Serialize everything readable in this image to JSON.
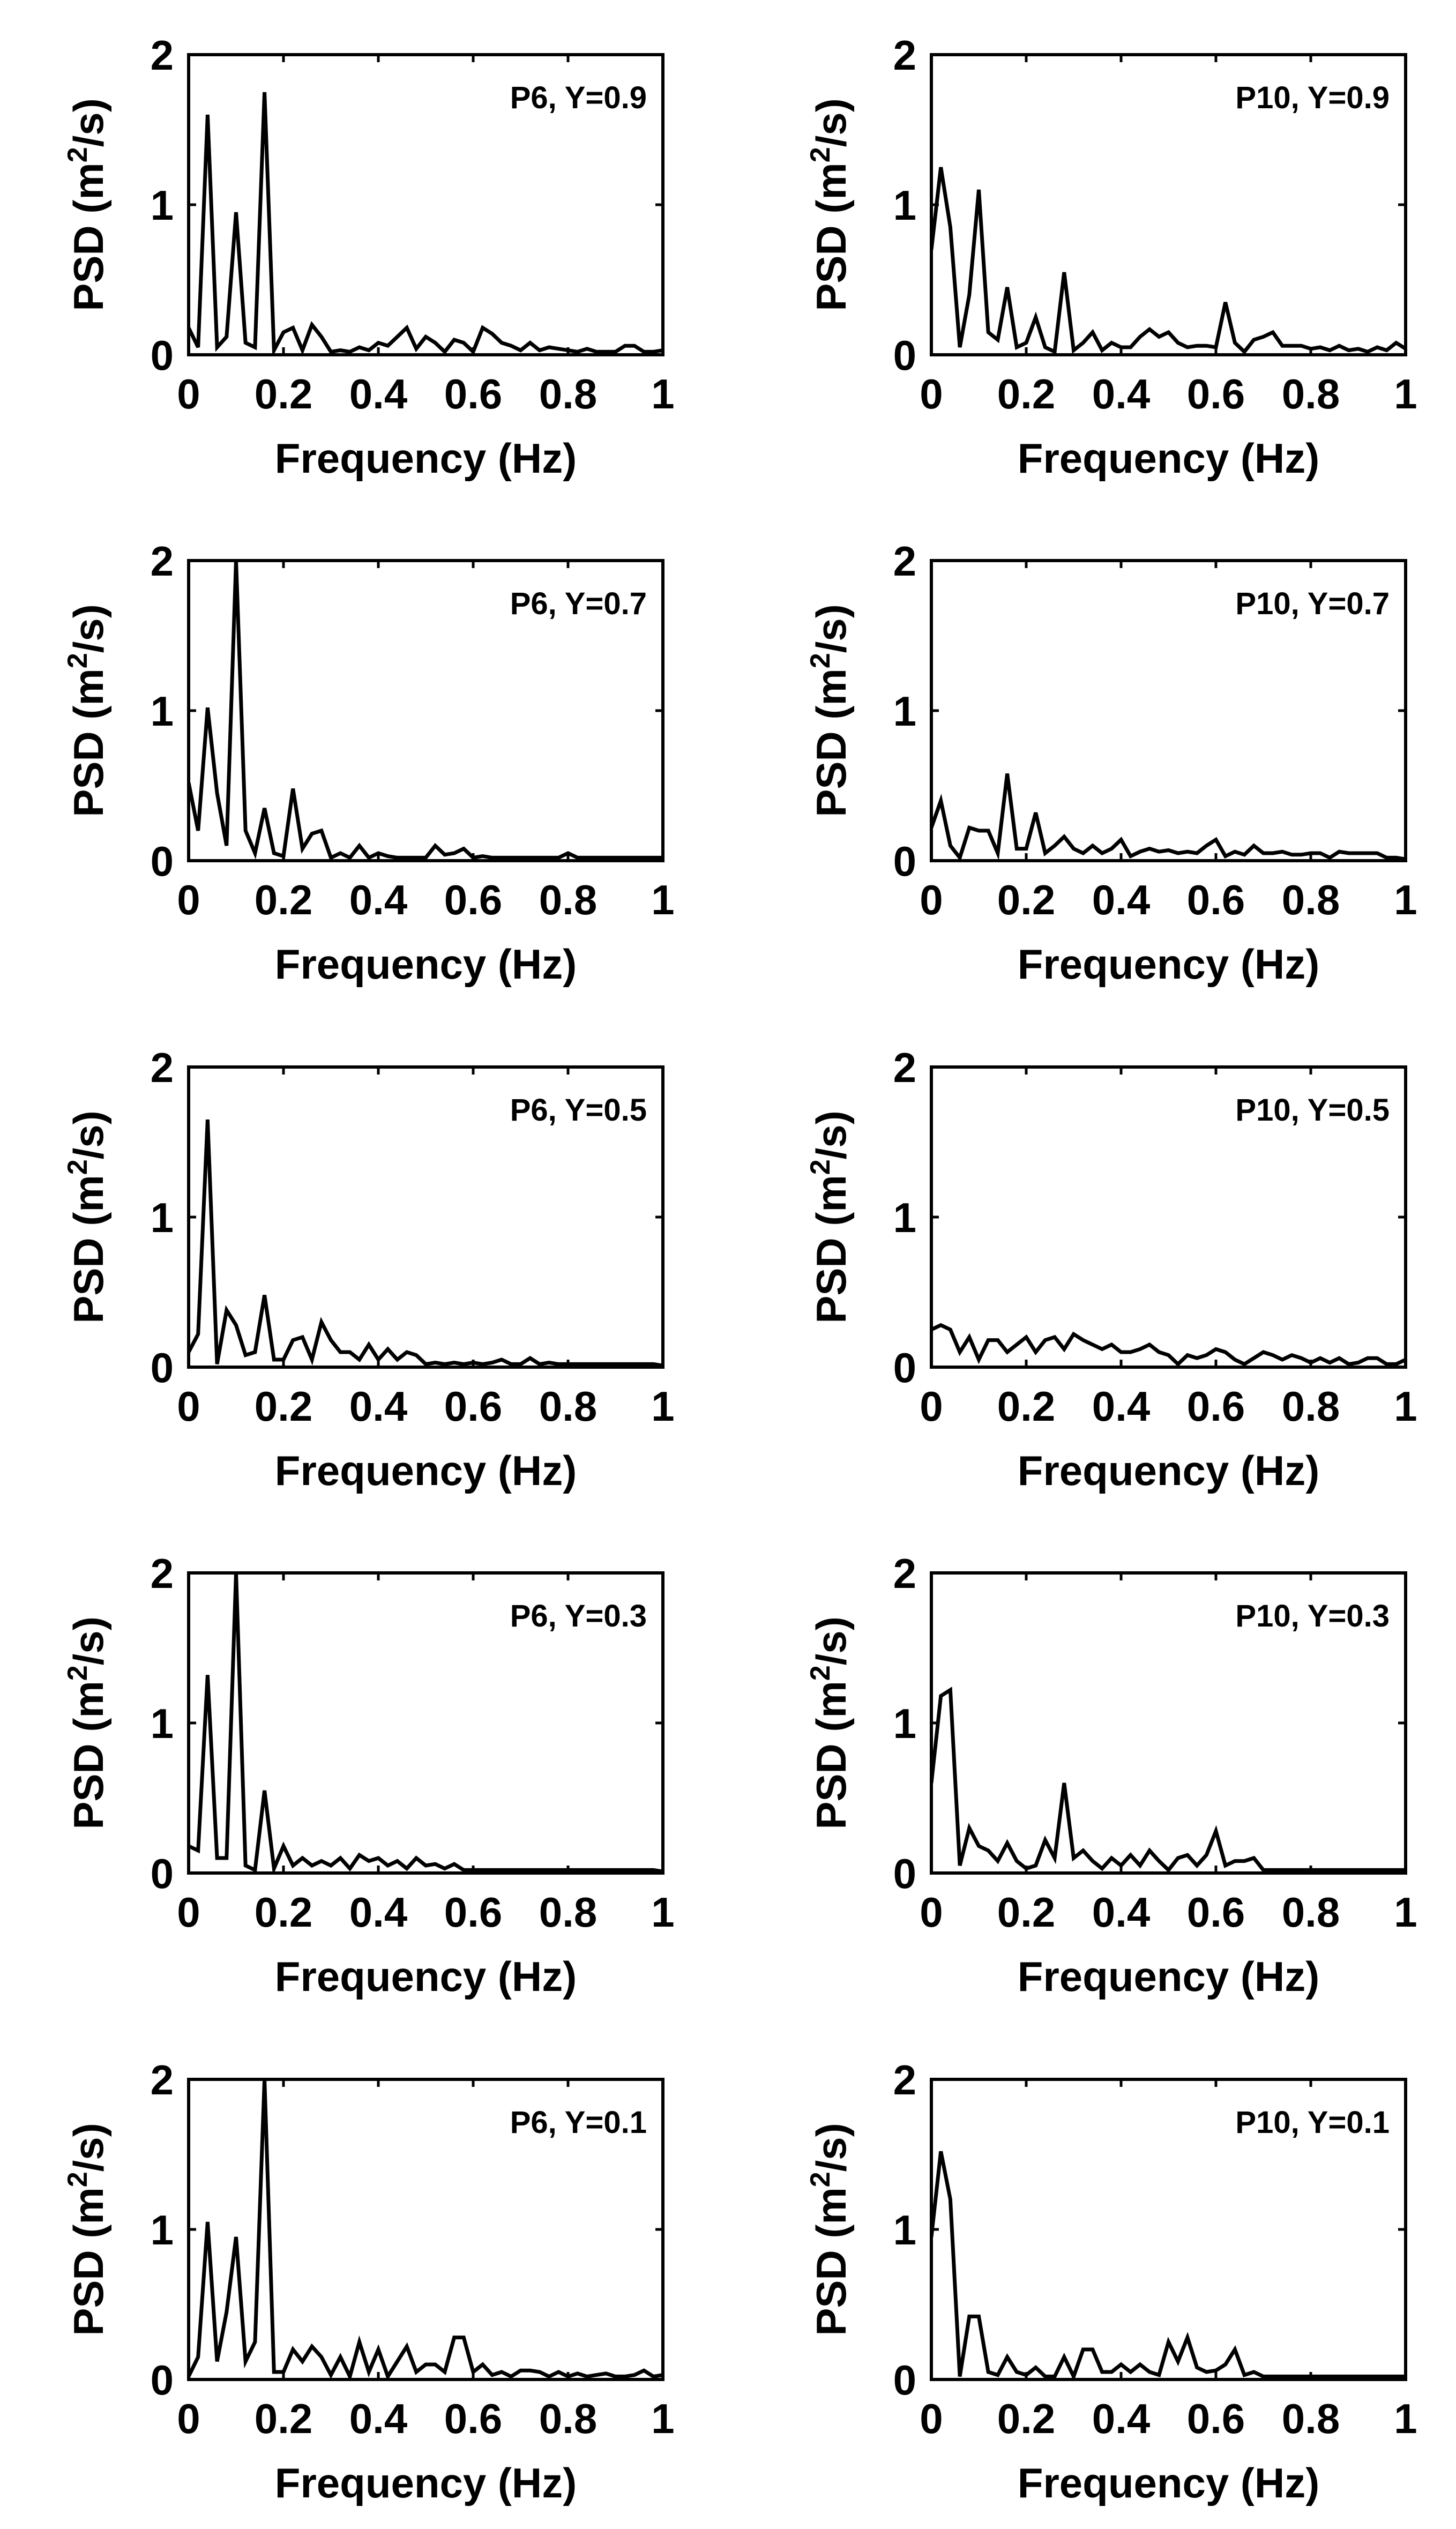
{
  "figure": {
    "xlabel": "Frequency (Hz)",
    "ylabel_main": "PSD (m",
    "ylabel_sup": "2",
    "ylabel_tail": "/s)"
  },
  "chart_data": [
    {
      "type": "line",
      "panel": "P6, Y=0.9",
      "xlabel": "Frequency (Hz)",
      "ylabel": "PSD (m2/s)",
      "xlim": [
        0,
        1
      ],
      "ylim": [
        0,
        2
      ],
      "xticks": [
        "0",
        "0.2",
        "0.4",
        "0.6",
        "0.8",
        "1"
      ],
      "yticks": [
        "0",
        "1",
        "2"
      ],
      "x": [
        0,
        0.02,
        0.04,
        0.06,
        0.08,
        0.1,
        0.12,
        0.14,
        0.16,
        0.18,
        0.2,
        0.22,
        0.24,
        0.26,
        0.28,
        0.3,
        0.32,
        0.34,
        0.36,
        0.38,
        0.4,
        0.42,
        0.44,
        0.46,
        0.48,
        0.5,
        0.52,
        0.54,
        0.56,
        0.58,
        0.6,
        0.62,
        0.64,
        0.66,
        0.68,
        0.7,
        0.72,
        0.74,
        0.76,
        0.78,
        0.8,
        0.82,
        0.84,
        0.86,
        0.88,
        0.9,
        0.92,
        0.94,
        0.96,
        0.98,
        1.0
      ],
      "y": [
        0.18,
        0.05,
        1.6,
        0.05,
        0.12,
        0.95,
        0.08,
        0.05,
        1.75,
        0.03,
        0.15,
        0.18,
        0.03,
        0.2,
        0.12,
        0.02,
        0.03,
        0.02,
        0.05,
        0.03,
        0.08,
        0.06,
        0.12,
        0.18,
        0.04,
        0.12,
        0.08,
        0.02,
        0.1,
        0.08,
        0.02,
        0.18,
        0.14,
        0.08,
        0.06,
        0.03,
        0.08,
        0.03,
        0.05,
        0.04,
        0.03,
        0.02,
        0.04,
        0.02,
        0.02,
        0.02,
        0.06,
        0.06,
        0.02,
        0.02,
        0.03
      ]
    },
    {
      "type": "line",
      "panel": "P10, Y=0.9",
      "xlabel": "Frequency (Hz)",
      "ylabel": "PSD (m2/s)",
      "xlim": [
        0,
        1
      ],
      "ylim": [
        0,
        2
      ],
      "xticks": [
        "0",
        "0.2",
        "0.4",
        "0.6",
        "0.8",
        "1"
      ],
      "yticks": [
        "0",
        "1",
        "2"
      ],
      "x": [
        0,
        0.02,
        0.04,
        0.06,
        0.08,
        0.1,
        0.12,
        0.14,
        0.16,
        0.18,
        0.2,
        0.22,
        0.24,
        0.26,
        0.28,
        0.3,
        0.32,
        0.34,
        0.36,
        0.38,
        0.4,
        0.42,
        0.44,
        0.46,
        0.48,
        0.5,
        0.52,
        0.54,
        0.56,
        0.58,
        0.6,
        0.62,
        0.64,
        0.66,
        0.68,
        0.7,
        0.72,
        0.74,
        0.76,
        0.78,
        0.8,
        0.82,
        0.84,
        0.86,
        0.88,
        0.9,
        0.92,
        0.94,
        0.96,
        0.98,
        1.0
      ],
      "y": [
        0.7,
        1.25,
        0.85,
        0.05,
        0.4,
        1.1,
        0.15,
        0.1,
        0.45,
        0.05,
        0.08,
        0.25,
        0.05,
        0.02,
        0.55,
        0.03,
        0.08,
        0.15,
        0.03,
        0.08,
        0.05,
        0.05,
        0.12,
        0.17,
        0.12,
        0.15,
        0.08,
        0.05,
        0.06,
        0.06,
        0.05,
        0.35,
        0.08,
        0.02,
        0.1,
        0.12,
        0.15,
        0.06,
        0.06,
        0.06,
        0.04,
        0.05,
        0.03,
        0.06,
        0.03,
        0.04,
        0.02,
        0.05,
        0.03,
        0.08,
        0.04
      ]
    },
    {
      "type": "line",
      "panel": "P6, Y=0.7",
      "xlabel": "Frequency (Hz)",
      "ylabel": "PSD (m2/s)",
      "xlim": [
        0,
        1
      ],
      "ylim": [
        0,
        2
      ],
      "xticks": [
        "0",
        "0.2",
        "0.4",
        "0.6",
        "0.8",
        "1"
      ],
      "yticks": [
        "0",
        "1",
        "2"
      ],
      "x": [
        0,
        0.02,
        0.04,
        0.06,
        0.08,
        0.1,
        0.12,
        0.14,
        0.16,
        0.18,
        0.2,
        0.22,
        0.24,
        0.26,
        0.28,
        0.3,
        0.32,
        0.34,
        0.36,
        0.38,
        0.4,
        0.42,
        0.44,
        0.46,
        0.48,
        0.5,
        0.52,
        0.54,
        0.56,
        0.58,
        0.6,
        0.62,
        0.64,
        0.66,
        0.68,
        0.7,
        0.72,
        0.74,
        0.76,
        0.78,
        0.8,
        0.82,
        0.84,
        0.86,
        0.88,
        0.9,
        0.92,
        0.94,
        0.96,
        0.98,
        1.0
      ],
      "y": [
        0.52,
        0.2,
        1.02,
        0.45,
        0.1,
        2.0,
        0.2,
        0.05,
        0.35,
        0.05,
        0.03,
        0.48,
        0.08,
        0.18,
        0.2,
        0.02,
        0.05,
        0.02,
        0.1,
        0.02,
        0.05,
        0.03,
        0.02,
        0.02,
        0.02,
        0.02,
        0.1,
        0.04,
        0.05,
        0.08,
        0.02,
        0.03,
        0.02,
        0.02,
        0.02,
        0.02,
        0.02,
        0.02,
        0.02,
        0.02,
        0.05,
        0.02,
        0.02,
        0.02,
        0.02,
        0.02,
        0.02,
        0.02,
        0.02,
        0.02,
        0.02
      ]
    },
    {
      "type": "line",
      "panel": "P10, Y=0.7",
      "xlabel": "Frequency (Hz)",
      "ylabel": "PSD (m2/s)",
      "xlim": [
        0,
        1
      ],
      "ylim": [
        0,
        2
      ],
      "xticks": [
        "0",
        "0.2",
        "0.4",
        "0.6",
        "0.8",
        "1"
      ],
      "yticks": [
        "0",
        "1",
        "2"
      ],
      "x": [
        0,
        0.02,
        0.04,
        0.06,
        0.08,
        0.1,
        0.12,
        0.14,
        0.16,
        0.18,
        0.2,
        0.22,
        0.24,
        0.26,
        0.28,
        0.3,
        0.32,
        0.34,
        0.36,
        0.38,
        0.4,
        0.42,
        0.44,
        0.46,
        0.48,
        0.5,
        0.52,
        0.54,
        0.56,
        0.58,
        0.6,
        0.62,
        0.64,
        0.66,
        0.68,
        0.7,
        0.72,
        0.74,
        0.76,
        0.78,
        0.8,
        0.82,
        0.84,
        0.86,
        0.88,
        0.9,
        0.92,
        0.94,
        0.96,
        0.98,
        1.0
      ],
      "y": [
        0.22,
        0.4,
        0.1,
        0.02,
        0.22,
        0.2,
        0.2,
        0.05,
        0.58,
        0.08,
        0.08,
        0.32,
        0.05,
        0.1,
        0.16,
        0.08,
        0.05,
        0.1,
        0.05,
        0.08,
        0.14,
        0.03,
        0.06,
        0.08,
        0.06,
        0.07,
        0.05,
        0.06,
        0.05,
        0.1,
        0.14,
        0.03,
        0.06,
        0.04,
        0.1,
        0.05,
        0.05,
        0.06,
        0.04,
        0.04,
        0.05,
        0.05,
        0.02,
        0.06,
        0.05,
        0.05,
        0.05,
        0.05,
        0.02,
        0.02,
        0.01
      ]
    },
    {
      "type": "line",
      "panel": "P6, Y=0.5",
      "xlabel": "Frequency (Hz)",
      "ylabel": "PSD (m2/s)",
      "xlim": [
        0,
        1
      ],
      "ylim": [
        0,
        2
      ],
      "xticks": [
        "0",
        "0.2",
        "0.4",
        "0.6",
        "0.8",
        "1"
      ],
      "yticks": [
        "0",
        "1",
        "2"
      ],
      "x": [
        0,
        0.02,
        0.04,
        0.06,
        0.08,
        0.1,
        0.12,
        0.14,
        0.16,
        0.18,
        0.2,
        0.22,
        0.24,
        0.26,
        0.28,
        0.3,
        0.32,
        0.34,
        0.36,
        0.38,
        0.4,
        0.42,
        0.44,
        0.46,
        0.48,
        0.5,
        0.52,
        0.54,
        0.56,
        0.58,
        0.6,
        0.62,
        0.64,
        0.66,
        0.68,
        0.7,
        0.72,
        0.74,
        0.76,
        0.78,
        0.8,
        0.82,
        0.84,
        0.86,
        0.88,
        0.9,
        0.92,
        0.94,
        0.96,
        0.98,
        1.0
      ],
      "y": [
        0.1,
        0.22,
        1.65,
        0.02,
        0.38,
        0.28,
        0.08,
        0.1,
        0.48,
        0.05,
        0.05,
        0.18,
        0.2,
        0.05,
        0.3,
        0.18,
        0.1,
        0.1,
        0.05,
        0.15,
        0.05,
        0.12,
        0.05,
        0.1,
        0.08,
        0.02,
        0.03,
        0.02,
        0.03,
        0.02,
        0.03,
        0.02,
        0.03,
        0.05,
        0.02,
        0.02,
        0.06,
        0.02,
        0.03,
        0.02,
        0.02,
        0.02,
        0.02,
        0.02,
        0.02,
        0.02,
        0.02,
        0.02,
        0.02,
        0.02,
        0.01
      ]
    },
    {
      "type": "line",
      "panel": "P10, Y=0.5",
      "xlabel": "Frequency (Hz)",
      "ylabel": "PSD (m2/s)",
      "xlim": [
        0,
        1
      ],
      "ylim": [
        0,
        2
      ],
      "xticks": [
        "0",
        "0.2",
        "0.4",
        "0.6",
        "0.8",
        "1"
      ],
      "yticks": [
        "0",
        "1",
        "2"
      ],
      "x": [
        0,
        0.02,
        0.04,
        0.06,
        0.08,
        0.1,
        0.12,
        0.14,
        0.16,
        0.18,
        0.2,
        0.22,
        0.24,
        0.26,
        0.28,
        0.3,
        0.32,
        0.34,
        0.36,
        0.38,
        0.4,
        0.42,
        0.44,
        0.46,
        0.48,
        0.5,
        0.52,
        0.54,
        0.56,
        0.58,
        0.6,
        0.62,
        0.64,
        0.66,
        0.68,
        0.7,
        0.72,
        0.74,
        0.76,
        0.78,
        0.8,
        0.82,
        0.84,
        0.86,
        0.88,
        0.9,
        0.92,
        0.94,
        0.96,
        0.98,
        1.0
      ],
      "y": [
        0.25,
        0.28,
        0.25,
        0.1,
        0.2,
        0.05,
        0.18,
        0.18,
        0.1,
        0.15,
        0.2,
        0.1,
        0.18,
        0.2,
        0.12,
        0.22,
        0.18,
        0.15,
        0.12,
        0.15,
        0.1,
        0.1,
        0.12,
        0.15,
        0.1,
        0.08,
        0.02,
        0.08,
        0.06,
        0.08,
        0.12,
        0.1,
        0.05,
        0.02,
        0.06,
        0.1,
        0.08,
        0.05,
        0.08,
        0.06,
        0.03,
        0.06,
        0.03,
        0.06,
        0.02,
        0.03,
        0.06,
        0.06,
        0.02,
        0.02,
        0.05
      ]
    },
    {
      "type": "line",
      "panel": "P6, Y=0.3",
      "xlabel": "Frequency (Hz)",
      "ylabel": "PSD (m2/s)",
      "xlim": [
        0,
        1
      ],
      "ylim": [
        0,
        2
      ],
      "xticks": [
        "0",
        "0.2",
        "0.4",
        "0.6",
        "0.8",
        "1"
      ],
      "yticks": [
        "0",
        "1",
        "2"
      ],
      "x": [
        0,
        0.02,
        0.04,
        0.06,
        0.08,
        0.1,
        0.12,
        0.14,
        0.16,
        0.18,
        0.2,
        0.22,
        0.24,
        0.26,
        0.28,
        0.3,
        0.32,
        0.34,
        0.36,
        0.38,
        0.4,
        0.42,
        0.44,
        0.46,
        0.48,
        0.5,
        0.52,
        0.54,
        0.56,
        0.58,
        0.6,
        0.62,
        0.64,
        0.66,
        0.68,
        0.7,
        0.72,
        0.74,
        0.76,
        0.78,
        0.8,
        0.82,
        0.84,
        0.86,
        0.88,
        0.9,
        0.92,
        0.94,
        0.96,
        0.98,
        1.0
      ],
      "y": [
        0.18,
        0.15,
        1.32,
        0.1,
        0.1,
        2.0,
        0.05,
        0.02,
        0.55,
        0.03,
        0.18,
        0.05,
        0.1,
        0.05,
        0.08,
        0.05,
        0.1,
        0.03,
        0.12,
        0.08,
        0.1,
        0.05,
        0.08,
        0.03,
        0.1,
        0.05,
        0.06,
        0.03,
        0.06,
        0.02,
        0.02,
        0.02,
        0.02,
        0.02,
        0.02,
        0.02,
        0.02,
        0.02,
        0.02,
        0.02,
        0.02,
        0.02,
        0.02,
        0.02,
        0.02,
        0.02,
        0.02,
        0.02,
        0.02,
        0.02,
        0.01
      ]
    },
    {
      "type": "line",
      "panel": "P10, Y=0.3",
      "xlabel": "Frequency (Hz)",
      "ylabel": "PSD (m2/s)",
      "xlim": [
        0,
        1
      ],
      "ylim": [
        0,
        2
      ],
      "xticks": [
        "0",
        "0.2",
        "0.4",
        "0.6",
        "0.8",
        "1"
      ],
      "yticks": [
        "0",
        "1",
        "2"
      ],
      "x": [
        0,
        0.02,
        0.04,
        0.06,
        0.08,
        0.1,
        0.12,
        0.14,
        0.16,
        0.18,
        0.2,
        0.22,
        0.24,
        0.26,
        0.28,
        0.3,
        0.32,
        0.34,
        0.36,
        0.38,
        0.4,
        0.42,
        0.44,
        0.46,
        0.48,
        0.5,
        0.52,
        0.54,
        0.56,
        0.58,
        0.6,
        0.62,
        0.64,
        0.66,
        0.68,
        0.7,
        0.72,
        0.74,
        0.76,
        0.78,
        0.8,
        0.82,
        0.84,
        0.86,
        0.88,
        0.9,
        0.92,
        0.94,
        0.96,
        0.98,
        1.0
      ],
      "y": [
        0.6,
        1.18,
        1.22,
        0.05,
        0.3,
        0.18,
        0.15,
        0.08,
        0.2,
        0.08,
        0.03,
        0.05,
        0.22,
        0.1,
        0.6,
        0.1,
        0.15,
        0.08,
        0.03,
        0.1,
        0.05,
        0.12,
        0.05,
        0.15,
        0.08,
        0.02,
        0.1,
        0.12,
        0.05,
        0.12,
        0.28,
        0.05,
        0.08,
        0.08,
        0.1,
        0.02,
        0.02,
        0.02,
        0.02,
        0.02,
        0.02,
        0.02,
        0.02,
        0.02,
        0.02,
        0.02,
        0.02,
        0.02,
        0.02,
        0.02,
        0.02
      ]
    },
    {
      "type": "line",
      "panel": "P6, Y=0.1",
      "xlabel": "Frequency (Hz)",
      "ylabel": "PSD (m2/s)",
      "xlim": [
        0,
        1
      ],
      "ylim": [
        0,
        2
      ],
      "xticks": [
        "0",
        "0.2",
        "0.4",
        "0.6",
        "0.8",
        "1"
      ],
      "yticks": [
        "0",
        "1",
        "2"
      ],
      "x": [
        0,
        0.02,
        0.04,
        0.06,
        0.08,
        0.1,
        0.12,
        0.14,
        0.16,
        0.18,
        0.2,
        0.22,
        0.24,
        0.26,
        0.28,
        0.3,
        0.32,
        0.34,
        0.36,
        0.38,
        0.4,
        0.42,
        0.44,
        0.46,
        0.48,
        0.5,
        0.52,
        0.54,
        0.56,
        0.58,
        0.6,
        0.62,
        0.64,
        0.66,
        0.68,
        0.7,
        0.72,
        0.74,
        0.76,
        0.78,
        0.8,
        0.82,
        0.84,
        0.86,
        0.88,
        0.9,
        0.92,
        0.94,
        0.96,
        0.98,
        1.0
      ],
      "y": [
        0.02,
        0.15,
        1.05,
        0.12,
        0.45,
        0.95,
        0.12,
        0.25,
        2.0,
        0.05,
        0.05,
        0.2,
        0.12,
        0.22,
        0.15,
        0.03,
        0.15,
        0.02,
        0.25,
        0.05,
        0.2,
        0.02,
        0.12,
        0.22,
        0.05,
        0.1,
        0.1,
        0.05,
        0.28,
        0.28,
        0.05,
        0.1,
        0.03,
        0.05,
        0.02,
        0.06,
        0.06,
        0.05,
        0.02,
        0.05,
        0.02,
        0.04,
        0.02,
        0.03,
        0.04,
        0.02,
        0.02,
        0.03,
        0.06,
        0.02,
        0.03
      ]
    },
    {
      "type": "line",
      "panel": "P10, Y=0.1",
      "xlabel": "Frequency (Hz)",
      "ylabel": "PSD (m2/s)",
      "xlim": [
        0,
        1
      ],
      "ylim": [
        0,
        2
      ],
      "xticks": [
        "0",
        "0.2",
        "0.4",
        "0.6",
        "0.8",
        "1"
      ],
      "yticks": [
        "0",
        "1",
        "2"
      ],
      "x": [
        0,
        0.02,
        0.04,
        0.06,
        0.08,
        0.1,
        0.12,
        0.14,
        0.16,
        0.18,
        0.2,
        0.22,
        0.24,
        0.26,
        0.28,
        0.3,
        0.32,
        0.34,
        0.36,
        0.38,
        0.4,
        0.42,
        0.44,
        0.46,
        0.48,
        0.5,
        0.52,
        0.54,
        0.56,
        0.58,
        0.6,
        0.62,
        0.64,
        0.66,
        0.68,
        0.7,
        0.72,
        0.74,
        0.76,
        0.78,
        0.8,
        0.82,
        0.84,
        0.86,
        0.88,
        0.9,
        0.92,
        0.94,
        0.96,
        0.98,
        1.0
      ],
      "y": [
        0.95,
        1.52,
        1.2,
        0.02,
        0.42,
        0.42,
        0.05,
        0.03,
        0.15,
        0.05,
        0.03,
        0.08,
        0.02,
        0.02,
        0.15,
        0.02,
        0.2,
        0.2,
        0.05,
        0.05,
        0.1,
        0.05,
        0.1,
        0.05,
        0.03,
        0.25,
        0.12,
        0.28,
        0.08,
        0.05,
        0.06,
        0.1,
        0.2,
        0.03,
        0.05,
        0.02,
        0.02,
        0.02,
        0.02,
        0.02,
        0.02,
        0.02,
        0.02,
        0.02,
        0.02,
        0.02,
        0.02,
        0.02,
        0.02,
        0.02,
        0.02
      ]
    }
  ]
}
